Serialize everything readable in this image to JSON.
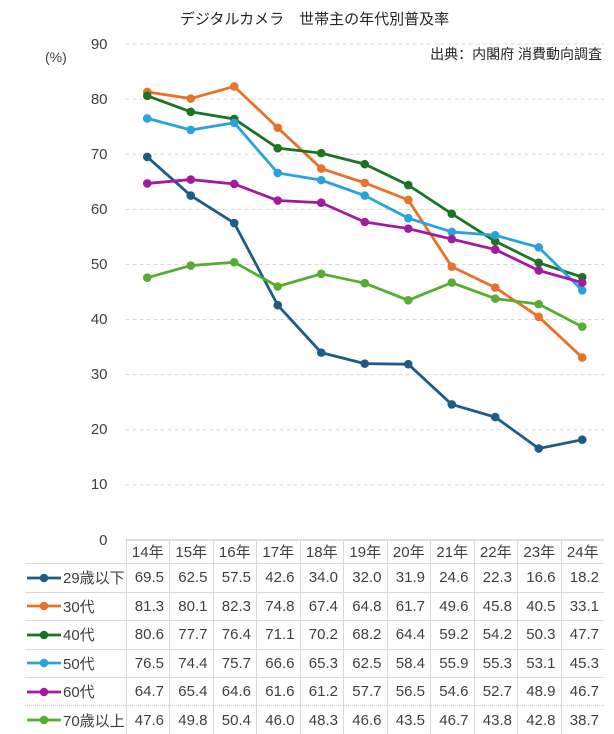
{
  "chart_data": {
    "type": "line",
    "title": "デジタルカメラ　世帯主の年代別普及率",
    "source": "出典：内閣府 消費動向調査",
    "unit_label": "(%)",
    "categories": [
      "14年",
      "15年",
      "16年",
      "17年",
      "18年",
      "19年",
      "20年",
      "21年",
      "22年",
      "23年",
      "24年"
    ],
    "series": [
      {
        "name": "29歳以下",
        "color": "#1F5C83",
        "values": [
          69.5,
          62.5,
          57.5,
          42.6,
          34.0,
          32.0,
          31.9,
          24.6,
          22.3,
          16.6,
          18.2
        ]
      },
      {
        "name": "30代",
        "color": "#E8722C",
        "values": [
          81.3,
          80.1,
          82.3,
          74.8,
          67.4,
          64.8,
          61.7,
          49.6,
          45.8,
          40.5,
          33.1
        ]
      },
      {
        "name": "40代",
        "color": "#1D7324",
        "values": [
          80.6,
          77.7,
          76.4,
          71.1,
          70.2,
          68.2,
          64.4,
          59.2,
          54.2,
          50.3,
          47.7
        ]
      },
      {
        "name": "50代",
        "color": "#2AA2DC",
        "values": [
          76.5,
          74.4,
          75.7,
          66.6,
          65.3,
          62.5,
          58.4,
          55.9,
          55.3,
          53.1,
          45.3
        ]
      },
      {
        "name": "60代",
        "color": "#A31A9E",
        "values": [
          64.7,
          65.4,
          64.6,
          61.6,
          61.2,
          57.7,
          56.5,
          54.6,
          52.7,
          48.9,
          46.7
        ]
      },
      {
        "name": "70歳以上",
        "color": "#57AC33",
        "values": [
          47.6,
          49.8,
          50.4,
          46.0,
          48.3,
          46.6,
          43.5,
          46.7,
          43.8,
          42.8,
          38.7
        ]
      }
    ],
    "ylim": [
      0,
      90
    ],
    "ytick_step": 10,
    "ytick_labels": [
      "0",
      "10",
      "20",
      "30",
      "40",
      "50",
      "60",
      "70",
      "80",
      "90"
    ],
    "grid": "dashed-horizontal",
    "legend_position": "table-left",
    "colors": {
      "gridline": "#D9D9D9",
      "axis_line": "#BFBFBF",
      "table_border": "#D9D9D9",
      "text": "#404040"
    }
  }
}
